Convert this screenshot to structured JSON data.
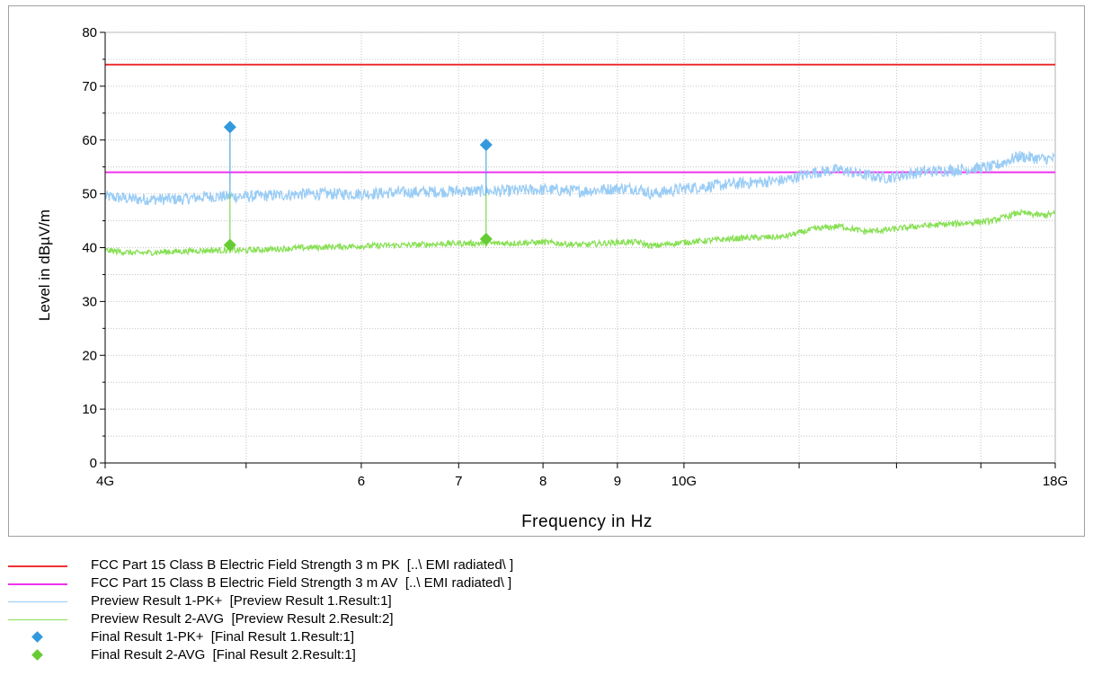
{
  "chart_data": {
    "type": "line",
    "title": "",
    "xlabel": "Frequency in Hz",
    "ylabel": "Level in dBµV/m",
    "x_scale": "log",
    "xlim": [
      4000000000,
      18000000000
    ],
    "ylim": [
      0,
      80
    ],
    "y_ticks": [
      0,
      10,
      20,
      30,
      40,
      50,
      60,
      70,
      80
    ],
    "x_tick_labels": [
      {
        "value": 4000000000,
        "label": "4G"
      },
      {
        "value": 6000000000,
        "label": "6"
      },
      {
        "value": 7000000000,
        "label": "7"
      },
      {
        "value": 8000000000,
        "label": "8"
      },
      {
        "value": 9000000000,
        "label": "9"
      },
      {
        "value": 10000000000,
        "label": "10G"
      },
      {
        "value": 18000000000,
        "label": "18G"
      }
    ],
    "grid": true,
    "legend_position": "bottom",
    "series": [
      {
        "name": "FCC Part 15 Class B Electric Field Strength 3 m PK  [..\\ EMI radiated\\ ]",
        "kind": "limit",
        "color": "#ee3333",
        "x": [
          4000000000,
          18000000000
        ],
        "y": [
          74,
          74
        ]
      },
      {
        "name": "FCC Part 15 Class B Electric Field Strength 3 m AV  [..\\ EMI radiated\\ ]",
        "kind": "limit",
        "color": "#ee33ee",
        "x": [
          4000000000,
          18000000000
        ],
        "y": [
          54,
          54
        ]
      },
      {
        "name": "Preview Result 1-PK+  [Preview Result 1.Result:1]",
        "kind": "trace",
        "color": "#99ccf5",
        "x": [
          4000000000,
          4200000000,
          4500000000,
          4700000000,
          5000000000,
          5500000000,
          6000000000,
          6500000000,
          7000000000,
          7500000000,
          8000000000,
          8500000000,
          9000000000,
          9300000000,
          9500000000,
          10000000000,
          11000000000,
          11700000000,
          12300000000,
          12800000000,
          13300000000,
          13800000000,
          14500000000,
          15500000000,
          16300000000,
          17000000000,
          17600000000,
          18000000000
        ],
        "y": [
          49.5,
          49,
          49,
          49.5,
          49.5,
          50,
          50,
          50.3,
          50.5,
          50.5,
          50.8,
          50.5,
          51,
          51,
          50,
          51,
          52,
          52.5,
          54,
          54.5,
          53.5,
          53,
          54,
          54.5,
          55,
          57,
          56.5,
          56.5
        ]
      },
      {
        "name": "Preview Result 2-AVG  [Preview Result 2.Result:2]",
        "kind": "trace",
        "color": "#88e055",
        "x": [
          4000000000,
          4200000000,
          4500000000,
          4700000000,
          5000000000,
          5500000000,
          6000000000,
          6500000000,
          7000000000,
          7500000000,
          8000000000,
          8500000000,
          9000000000,
          9300000000,
          9500000000,
          10000000000,
          11000000000,
          11700000000,
          12300000000,
          12800000000,
          13300000000,
          13800000000,
          14500000000,
          15500000000,
          16300000000,
          17000000000,
          17600000000,
          18000000000
        ],
        "y": [
          39.5,
          39,
          39.3,
          39.5,
          39.5,
          40,
          40.3,
          40.5,
          40.8,
          40.8,
          41,
          40.5,
          41,
          41,
          40.3,
          41,
          41.8,
          42,
          43.5,
          44,
          43,
          43.3,
          44,
          44.5,
          45,
          46.5,
          46,
          46.3
        ]
      },
      {
        "name": "Final Result 1-PK+  [Final Result 1.Result:1]",
        "kind": "final",
        "color": "#3399dd",
        "x": [
          4874000000,
          7311000000
        ],
        "y": [
          62.4,
          59.1
        ]
      },
      {
        "name": "Final Result 2-AVG  [Final Result 2.Result:1]",
        "kind": "final",
        "color": "#66cc33",
        "x": [
          4874000000,
          7311000000
        ],
        "y": [
          40.5,
          41.6
        ]
      }
    ]
  }
}
